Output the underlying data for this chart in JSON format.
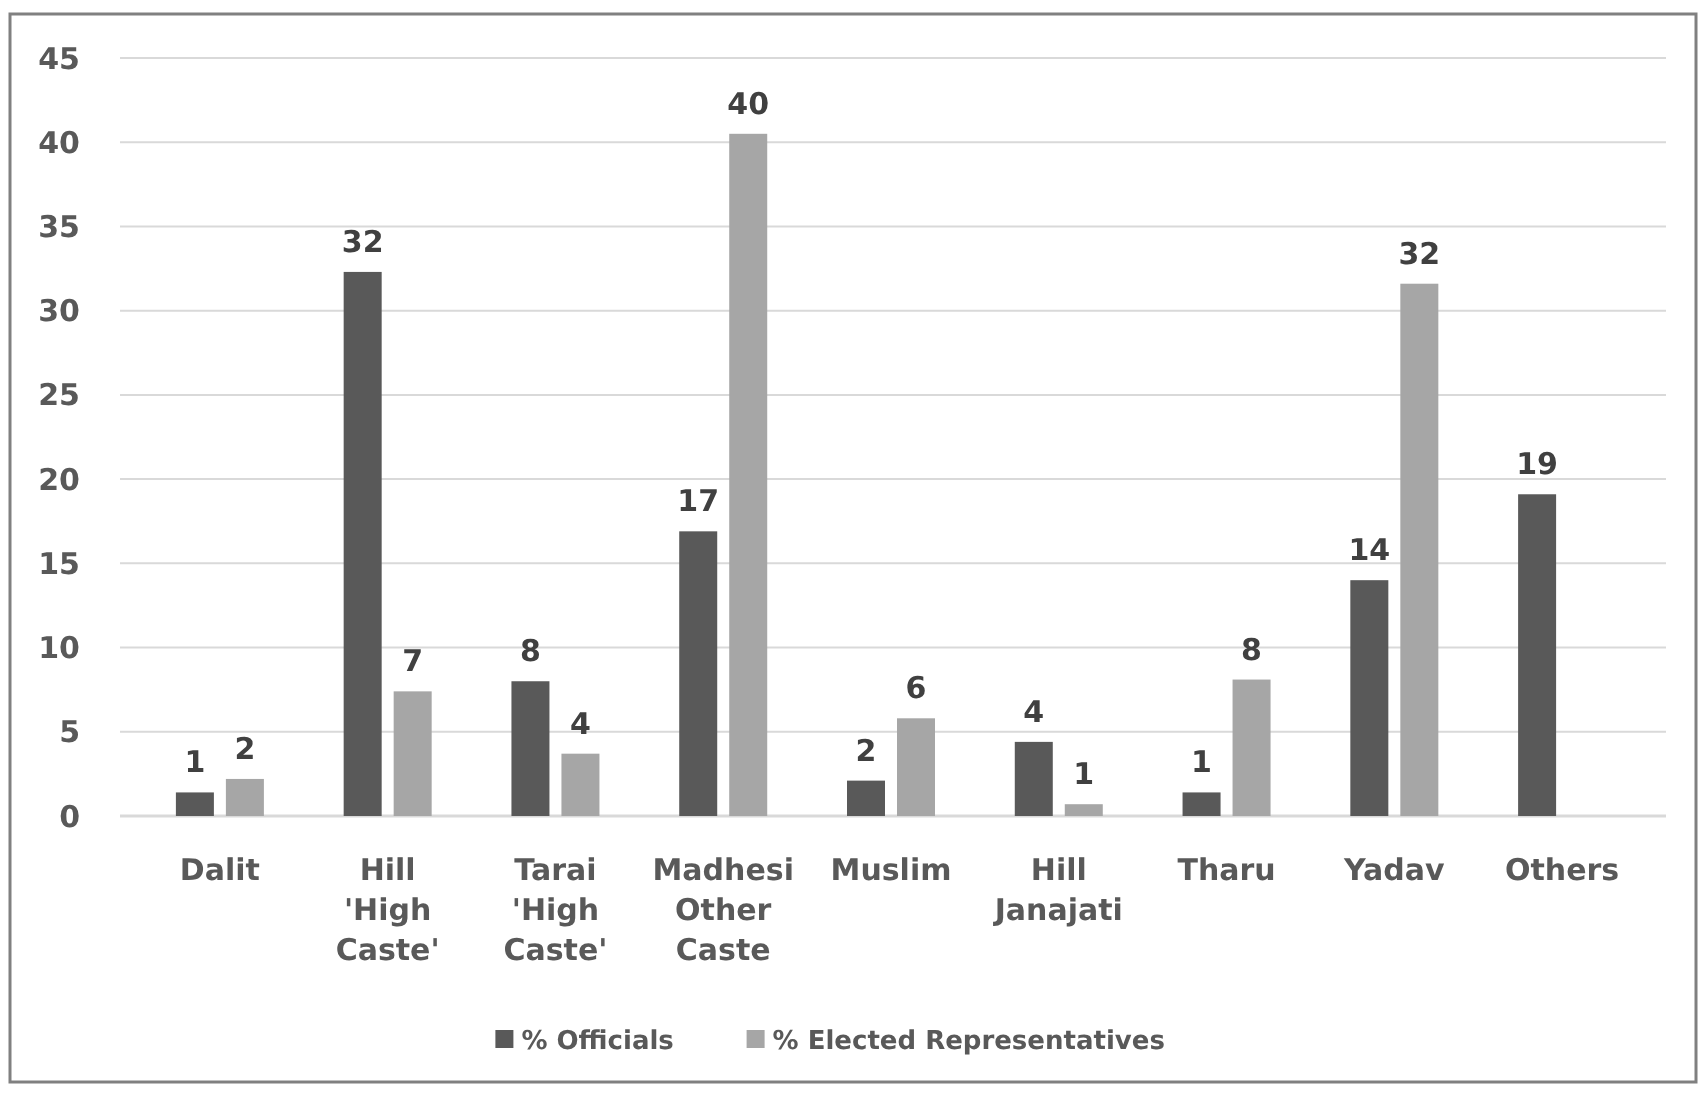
{
  "chart_data": {
    "type": "bar",
    "categories": [
      "Dalit",
      "Hill 'High Caste'",
      "Tarai 'High Caste'",
      "Madhesi Other Caste",
      "Muslim",
      "Hill Janajati",
      "Tharu",
      "Yadav",
      "Others"
    ],
    "series": [
      {
        "name": "% Officials",
        "color": "#595959",
        "values": [
          1.4,
          32.3,
          8.0,
          16.9,
          2.1,
          4.4,
          1.4,
          14.0,
          19.1
        ],
        "value_labels": [
          "1",
          "32",
          "8",
          "17",
          "2",
          "4",
          "1",
          "14",
          "19"
        ]
      },
      {
        "name": "% Elected Representatives",
        "color": "#a6a6a6",
        "values": [
          2.2,
          7.4,
          3.7,
          40.5,
          5.8,
          0.7,
          8.1,
          31.6,
          null
        ],
        "value_labels": [
          "2",
          "7",
          "4",
          "40",
          "6",
          "1",
          "8",
          "32",
          null
        ]
      }
    ],
    "ylim": [
      0,
      45
    ],
    "yticks": [
      0,
      5,
      10,
      15,
      20,
      25,
      30,
      35,
      40,
      45
    ],
    "grid": "y",
    "legend": "bottom"
  }
}
